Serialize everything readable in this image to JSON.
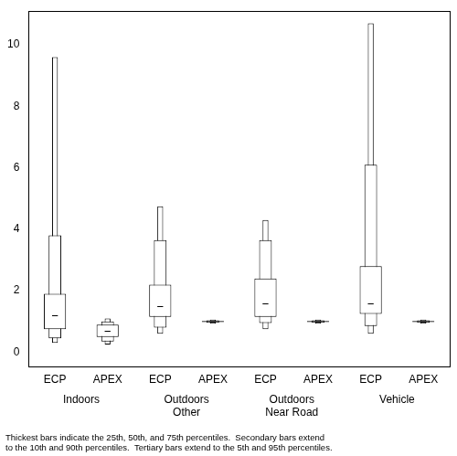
{
  "chart_data": {
    "type": "box",
    "categories": [
      "ECP",
      "APEX",
      "ECP",
      "APEX",
      "ECP",
      "APEX",
      "ECP",
      "APEX"
    ],
    "groups": [
      [
        "Indoors"
      ],
      [
        "Outdoors",
        "Other"
      ],
      [
        "Outdoors",
        "Near Road"
      ],
      [
        "Vehicle"
      ]
    ],
    "values": [
      [
        0.3,
        0.45,
        0.75,
        1.2,
        1.9,
        3.8,
        9.6
      ],
      [
        0.25,
        0.35,
        0.5,
        0.7,
        0.9,
        1.0,
        1.1
      ],
      [
        0.6,
        0.8,
        1.15,
        1.5,
        2.2,
        3.65,
        4.75
      ],
      [
        0.93,
        0.96,
        0.98,
        1.0,
        1.02,
        1.04,
        1.06
      ],
      [
        0.75,
        0.95,
        1.15,
        1.6,
        2.4,
        3.65,
        4.3
      ],
      [
        0.93,
        0.96,
        0.98,
        1.0,
        1.02,
        1.04,
        1.06
      ],
      [
        0.6,
        0.85,
        1.25,
        1.6,
        2.8,
        6.1,
        10.7
      ],
      [
        0.93,
        0.96,
        0.98,
        1.0,
        1.02,
        1.04,
        1.06
      ]
    ],
    "color": "#ffffff",
    "ylim": [
      -0.45,
      11.1
    ],
    "yticks": [
      0,
      2,
      4,
      6,
      8,
      10
    ],
    "grid": false,
    "note": [
      "Thickest bars indicate the 25th, 50th, and 75th percentiles.  Secondary bars extend",
      "to the 10th and 90th percentiles.  Tertiary bars extend to the 5th and 95th percentiles."
    ]
  }
}
